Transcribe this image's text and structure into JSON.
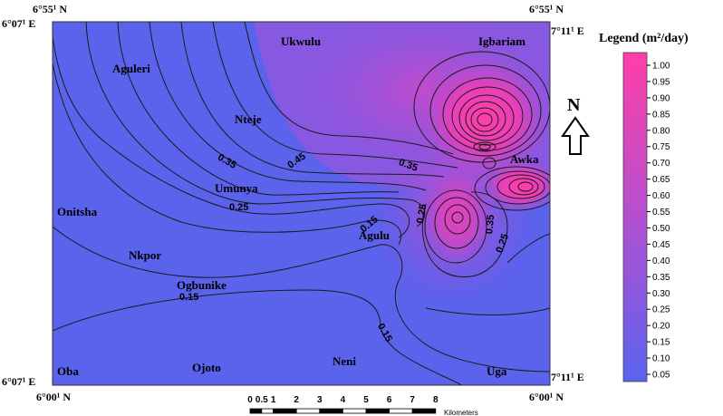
{
  "coords": {
    "top_left_lat": "6°55¹ N",
    "top_left_lon": "6°07¹ E",
    "top_right_lat": "6°55¹ N",
    "top_right_lon": "7°11¹ E",
    "bottom_left_lon": "6°07¹ E",
    "bottom_left_lat": "6°00¹ N",
    "bottom_right_lon": "7°11¹ E",
    "bottom_right_lat": "6°00¹ N"
  },
  "places": [
    "Ukwulu",
    "Igbariam",
    "Aguleri",
    "Nteje",
    "Awka",
    "Umunya",
    "Onitsha",
    "Agulu",
    "Nkpor",
    "Ogbunike",
    "Oba",
    "Ojoto",
    "Neni",
    "Uga"
  ],
  "contour_labels": [
    "0.35",
    "0.45",
    "0.35",
    "0.25",
    "0.15",
    "0.25",
    "0.35",
    "0.25",
    "0.15",
    "0.15"
  ],
  "legend": {
    "title": "Legend (m²/day)",
    "ticks": [
      "1.00",
      "0.95",
      "0.90",
      "0.85",
      "0.80",
      "0.75",
      "0.70",
      "0.65",
      "0.60",
      "0.55",
      "0.50",
      "0.45",
      "0.40",
      "0.35",
      "0.30",
      "0.25",
      "0.20",
      "0.15",
      "0.10",
      "0.05"
    ],
    "color_top": "#ff3fa8",
    "color_bottom": "#5a63ee"
  },
  "north_label": "N",
  "scale_bar": {
    "ticks": [
      "0",
      "0.5",
      "1",
      "2",
      "3",
      "4",
      "5",
      "6",
      "7",
      "8"
    ],
    "unit": "Kilometers"
  }
}
